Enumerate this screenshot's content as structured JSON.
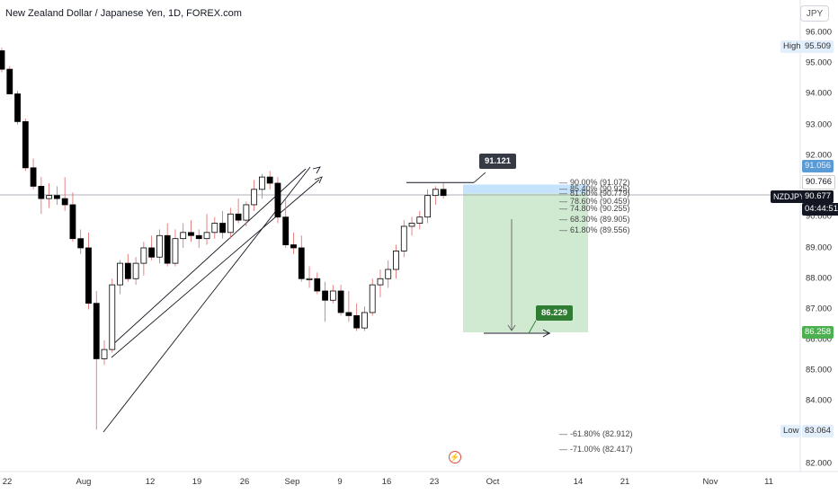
{
  "header": {
    "title": "New Zealand Dollar / Japanese Yen, 1D, FOREX.com"
  },
  "currency_button": "JPY",
  "price_axis": {
    "ticks": [
      "96.000",
      "95.000",
      "94.000",
      "93.000",
      "92.000",
      "91.000",
      "90.000",
      "89.000",
      "88.000",
      "87.000",
      "86.000",
      "85.000",
      "84.000",
      "83.000",
      "82.000"
    ],
    "high": {
      "label": "High",
      "value": "95.509"
    },
    "low": {
      "label": "Low",
      "value": "83.064"
    },
    "tags": {
      "fib_top": "91.056",
      "current_line": "90.766",
      "symbol": "NZDJPY",
      "last_price": "90.677",
      "countdown": "04:44:51",
      "target": "86.258"
    }
  },
  "time_axis": {
    "labels": [
      "22",
      "Aug",
      "12",
      "19",
      "26",
      "Sep",
      "9",
      "16",
      "23",
      "Oct",
      "14",
      "21",
      "Nov",
      "11"
    ]
  },
  "fib_levels": [
    "90.00% (91.072)",
    "85.40% (90.925)",
    "81.60% (90.779)",
    "78.60% (90.459)",
    "74.80% (90.255)",
    "68.30% (89.905)",
    "61.80% (89.556)",
    "-61.80% (82.912)",
    "-71.00% (82.417)"
  ],
  "callouts": {
    "entry": "91.121",
    "target": "86.229"
  },
  "colors": {
    "up": "#ffffff",
    "down": "#000000",
    "profit_zone": "#c8e6c9",
    "stop_zone": "#bbdefb",
    "target_tag": "#4caf50",
    "fib_tag": "#5b9bd5"
  },
  "chart_data": {
    "type": "candlestick",
    "symbol": "NZDJPY",
    "interval": "1D",
    "price_range": [
      82.0,
      96.0
    ],
    "candles": [
      {
        "o": 95.4,
        "h": 95.5,
        "l": 94.7,
        "c": 94.8
      },
      {
        "o": 94.8,
        "h": 94.9,
        "l": 94.0,
        "c": 94.0
      },
      {
        "o": 94.0,
        "h": 94.1,
        "l": 93.0,
        "c": 93.1
      },
      {
        "o": 93.1,
        "h": 93.2,
        "l": 91.5,
        "c": 91.6
      },
      {
        "o": 91.6,
        "h": 91.9,
        "l": 90.9,
        "c": 91.0
      },
      {
        "o": 91.0,
        "h": 91.3,
        "l": 90.1,
        "c": 90.6
      },
      {
        "o": 90.6,
        "h": 91.1,
        "l": 90.3,
        "c": 90.7
      },
      {
        "o": 90.7,
        "h": 91.0,
        "l": 90.4,
        "c": 90.6
      },
      {
        "o": 90.6,
        "h": 91.3,
        "l": 90.2,
        "c": 90.4
      },
      {
        "o": 90.4,
        "h": 90.8,
        "l": 89.2,
        "c": 89.3
      },
      {
        "o": 89.3,
        "h": 89.6,
        "l": 88.8,
        "c": 89.0
      },
      {
        "o": 89.0,
        "h": 89.5,
        "l": 87.0,
        "c": 87.2
      },
      {
        "o": 87.2,
        "h": 87.6,
        "l": 83.1,
        "c": 85.4
      },
      {
        "o": 85.4,
        "h": 86.0,
        "l": 85.2,
        "c": 85.7
      },
      {
        "o": 85.7,
        "h": 88.0,
        "l": 85.6,
        "c": 87.8
      },
      {
        "o": 87.8,
        "h": 88.6,
        "l": 87.5,
        "c": 88.5
      },
      {
        "o": 88.5,
        "h": 88.8,
        "l": 87.9,
        "c": 88.0
      },
      {
        "o": 88.0,
        "h": 88.7,
        "l": 87.8,
        "c": 88.5
      },
      {
        "o": 88.5,
        "h": 89.2,
        "l": 88.1,
        "c": 89.0
      },
      {
        "o": 89.0,
        "h": 89.4,
        "l": 88.6,
        "c": 88.7
      },
      {
        "o": 88.7,
        "h": 89.6,
        "l": 88.5,
        "c": 89.4
      },
      {
        "o": 89.4,
        "h": 89.8,
        "l": 88.4,
        "c": 88.5
      },
      {
        "o": 88.5,
        "h": 89.6,
        "l": 88.4,
        "c": 89.3
      },
      {
        "o": 89.3,
        "h": 89.8,
        "l": 89.0,
        "c": 89.5
      },
      {
        "o": 89.5,
        "h": 89.9,
        "l": 89.2,
        "c": 89.4
      },
      {
        "o": 89.4,
        "h": 89.6,
        "l": 89.0,
        "c": 89.3
      },
      {
        "o": 89.3,
        "h": 90.1,
        "l": 89.1,
        "c": 89.5
      },
      {
        "o": 89.5,
        "h": 90.0,
        "l": 89.3,
        "c": 89.8
      },
      {
        "o": 89.8,
        "h": 90.2,
        "l": 89.3,
        "c": 89.5
      },
      {
        "o": 89.5,
        "h": 90.3,
        "l": 89.3,
        "c": 90.1
      },
      {
        "o": 90.1,
        "h": 90.6,
        "l": 89.8,
        "c": 89.9
      },
      {
        "o": 89.9,
        "h": 90.5,
        "l": 89.7,
        "c": 90.4
      },
      {
        "o": 90.4,
        "h": 91.2,
        "l": 90.2,
        "c": 90.9
      },
      {
        "o": 90.9,
        "h": 91.4,
        "l": 90.6,
        "c": 91.3
      },
      {
        "o": 91.3,
        "h": 91.5,
        "l": 90.9,
        "c": 91.1
      },
      {
        "o": 91.1,
        "h": 91.3,
        "l": 89.8,
        "c": 90.0
      },
      {
        "o": 90.0,
        "h": 90.6,
        "l": 89.0,
        "c": 89.1
      },
      {
        "o": 89.1,
        "h": 89.5,
        "l": 88.8,
        "c": 89.0
      },
      {
        "o": 89.0,
        "h": 89.4,
        "l": 87.9,
        "c": 88.0
      },
      {
        "o": 88.0,
        "h": 88.4,
        "l": 87.7,
        "c": 88.0
      },
      {
        "o": 88.0,
        "h": 88.2,
        "l": 87.5,
        "c": 87.6
      },
      {
        "o": 87.6,
        "h": 87.9,
        "l": 86.6,
        "c": 87.3
      },
      {
        "o": 87.3,
        "h": 87.8,
        "l": 87.2,
        "c": 87.6
      },
      {
        "o": 87.6,
        "h": 87.8,
        "l": 86.8,
        "c": 86.9
      },
      {
        "o": 86.9,
        "h": 87.6,
        "l": 86.6,
        "c": 86.8
      },
      {
        "o": 86.8,
        "h": 87.2,
        "l": 86.3,
        "c": 86.4
      },
      {
        "o": 86.4,
        "h": 87.1,
        "l": 86.3,
        "c": 86.9
      },
      {
        "o": 86.9,
        "h": 88.0,
        "l": 86.8,
        "c": 87.8
      },
      {
        "o": 87.8,
        "h": 88.3,
        "l": 87.4,
        "c": 88.0
      },
      {
        "o": 88.0,
        "h": 88.6,
        "l": 87.7,
        "c": 88.3
      },
      {
        "o": 88.3,
        "h": 89.1,
        "l": 88.0,
        "c": 88.9
      },
      {
        "o": 88.9,
        "h": 89.9,
        "l": 88.7,
        "c": 89.7
      },
      {
        "o": 89.7,
        "h": 90.0,
        "l": 89.4,
        "c": 89.8
      },
      {
        "o": 89.8,
        "h": 90.2,
        "l": 89.6,
        "c": 90.0
      },
      {
        "o": 90.0,
        "h": 90.9,
        "l": 89.8,
        "c": 90.7
      },
      {
        "o": 90.7,
        "h": 91.0,
        "l": 90.4,
        "c": 90.9
      },
      {
        "o": 90.9,
        "h": 91.1,
        "l": 90.6,
        "c": 90.7
      }
    ]
  }
}
